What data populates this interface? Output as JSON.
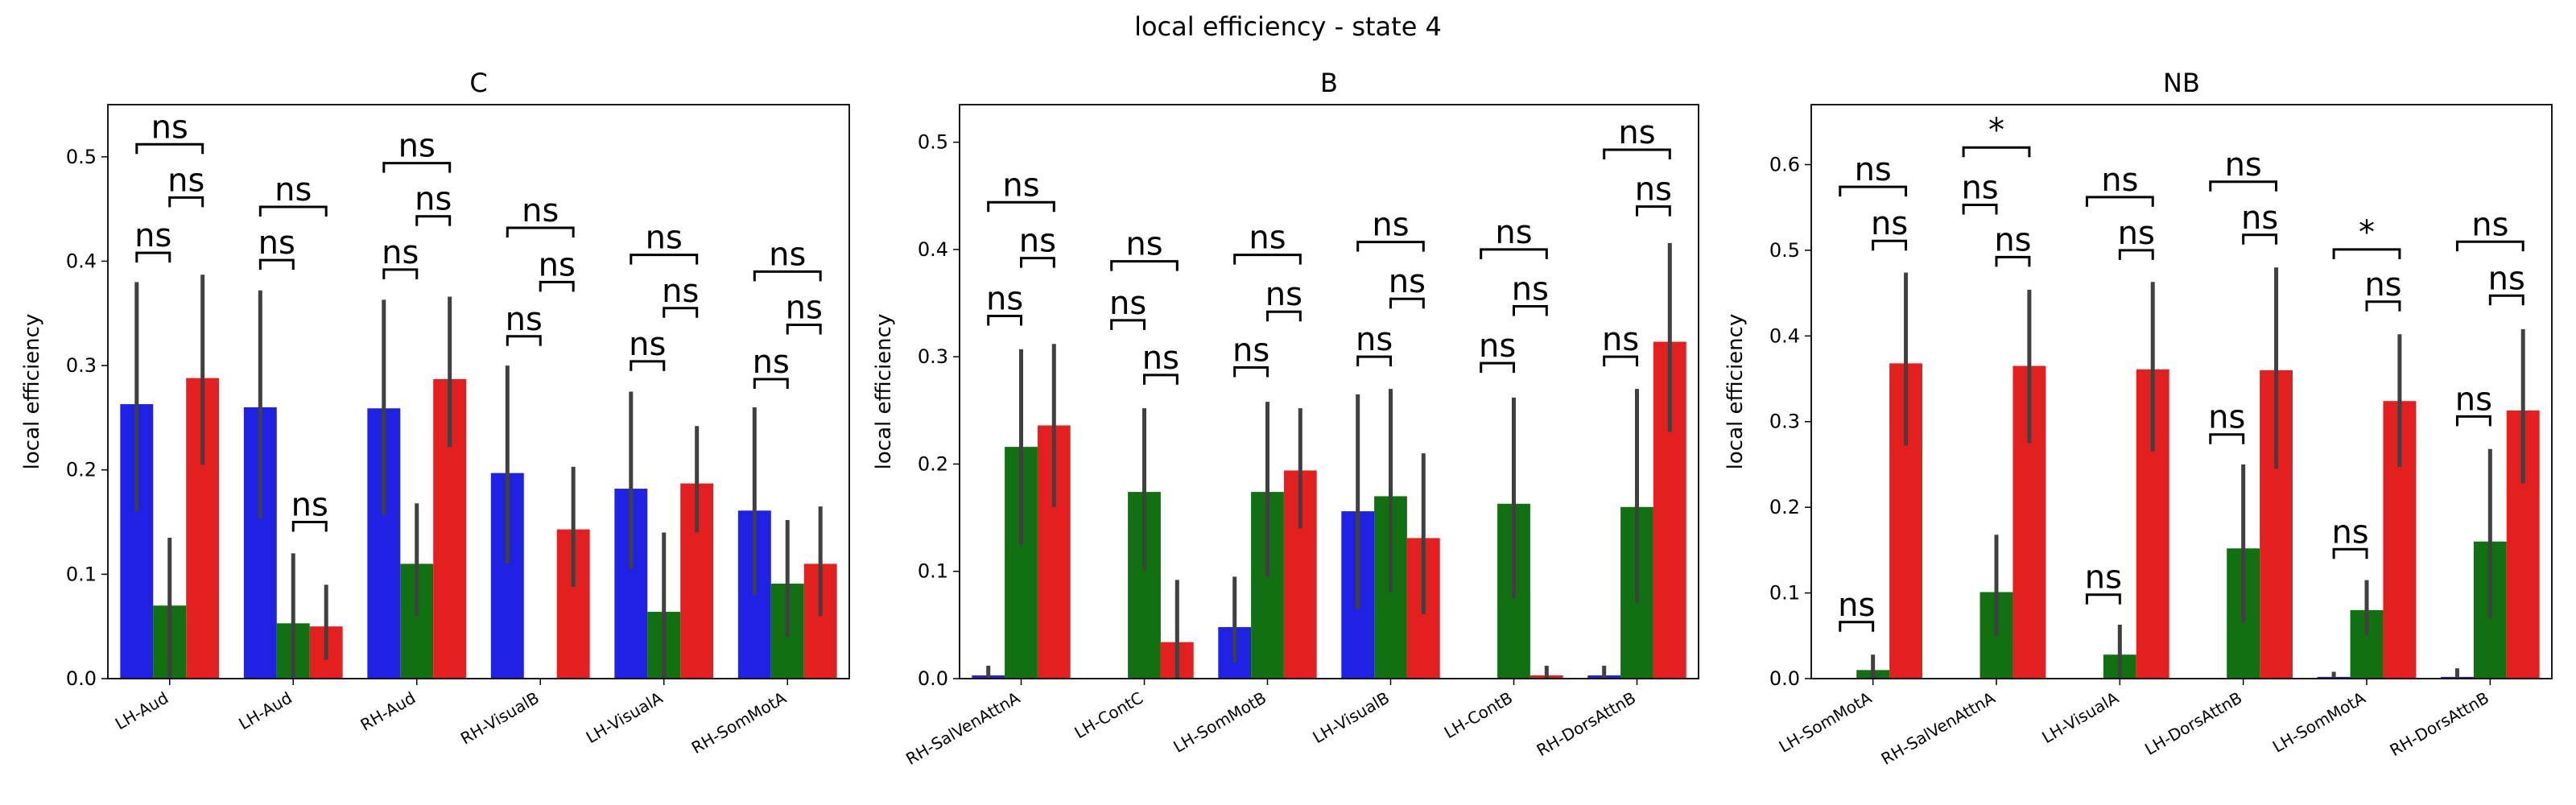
{
  "figure": {
    "title": "local efficiency - state 4"
  },
  "colors": {
    "series1": "#1f22e4",
    "series2": "#117011",
    "series3": "#e41f1f",
    "errorbar": "#404040"
  },
  "chart_data": [
    {
      "type": "bar",
      "title": "C",
      "ylabel": "local efficiency",
      "ylim": [
        0,
        0.55
      ],
      "yticks": [
        0.0,
        0.1,
        0.2,
        0.3,
        0.4,
        0.5
      ],
      "categories": [
        "LH-Aud",
        "LH-Aud",
        "RH-Aud",
        "RH-VisualB",
        "LH-VisualA",
        "RH-SomMotA"
      ],
      "series": [
        {
          "values": [
            0.263,
            0.26,
            0.259,
            0.197,
            0.182,
            0.161
          ],
          "err": [
            [
              0.16,
              0.38
            ],
            [
              0.153,
              0.372
            ],
            [
              0.157,
              0.363
            ],
            [
              0.11,
              0.3
            ],
            [
              0.105,
              0.275
            ],
            [
              0.08,
              0.26
            ]
          ]
        },
        {
          "values": [
            0.07,
            0.053,
            0.11,
            0.0,
            0.064,
            0.091
          ],
          "err": [
            [
              0.0,
              0.135
            ],
            [
              0.0,
              0.12
            ],
            [
              0.06,
              0.168
            ],
            null,
            [
              0.0,
              0.14
            ],
            [
              0.04,
              0.152
            ]
          ]
        },
        {
          "values": [
            0.288,
            0.05,
            0.287,
            0.143,
            0.187,
            0.11
          ],
          "err": [
            [
              0.205,
              0.387
            ],
            [
              0.018,
              0.09
            ],
            [
              0.222,
              0.366
            ],
            [
              0.088,
              0.203
            ],
            [
              0.14,
              0.242
            ],
            [
              0.06,
              0.165
            ]
          ]
        }
      ],
      "annotations": [
        {
          "cat": 0,
          "pair": "0-1",
          "y": 0.408,
          "label": "ns"
        },
        {
          "cat": 0,
          "pair": "1-2",
          "y": 0.461,
          "label": "ns"
        },
        {
          "cat": 0,
          "pair": "0-2",
          "y": 0.512,
          "label": "ns"
        },
        {
          "cat": 1,
          "pair": "0-1",
          "y": 0.401,
          "label": "ns"
        },
        {
          "cat": 1,
          "pair": "1-2",
          "y": 0.15,
          "label": "ns"
        },
        {
          "cat": 1,
          "pair": "0-2",
          "y": 0.452,
          "label": "ns"
        },
        {
          "cat": 2,
          "pair": "0-1",
          "y": 0.392,
          "label": "ns"
        },
        {
          "cat": 2,
          "pair": "1-2",
          "y": 0.443,
          "label": "ns"
        },
        {
          "cat": 2,
          "pair": "0-2",
          "y": 0.494,
          "label": "ns"
        },
        {
          "cat": 3,
          "pair": "0-1",
          "y": 0.328,
          "label": "ns"
        },
        {
          "cat": 3,
          "pair": "1-2",
          "y": 0.38,
          "label": "ns"
        },
        {
          "cat": 3,
          "pair": "0-2",
          "y": 0.432,
          "label": "ns"
        },
        {
          "cat": 4,
          "pair": "0-1",
          "y": 0.304,
          "label": "ns"
        },
        {
          "cat": 4,
          "pair": "1-2",
          "y": 0.355,
          "label": "ns"
        },
        {
          "cat": 4,
          "pair": "0-2",
          "y": 0.406,
          "label": "ns"
        },
        {
          "cat": 5,
          "pair": "0-1",
          "y": 0.287,
          "label": "ns"
        },
        {
          "cat": 5,
          "pair": "1-2",
          "y": 0.339,
          "label": "ns"
        },
        {
          "cat": 5,
          "pair": "0-2",
          "y": 0.39,
          "label": "ns"
        }
      ]
    },
    {
      "type": "bar",
      "title": "B",
      "ylabel": "local efficiency",
      "ylim": [
        0,
        0.535
      ],
      "yticks": [
        0.0,
        0.1,
        0.2,
        0.3,
        0.4,
        0.5
      ],
      "categories": [
        "RH-SalVenAttnA",
        "LH-ContC",
        "LH-SomMotB",
        "LH-VisualB",
        "LH-ContB",
        "RH-DorsAttnB"
      ],
      "series": [
        {
          "values": [
            0.003,
            0.0,
            0.048,
            0.156,
            0.0,
            0.003
          ],
          "err": [
            [
              0.0,
              0.012
            ],
            null,
            [
              0.015,
              0.095
            ],
            [
              0.065,
              0.265
            ],
            null,
            [
              0.0,
              0.012
            ]
          ]
        },
        {
          "values": [
            0.216,
            0.174,
            0.174,
            0.17,
            0.163,
            0.16
          ],
          "err": [
            [
              0.125,
              0.307
            ],
            [
              0.1,
              0.252
            ],
            [
              0.095,
              0.258
            ],
            [
              0.08,
              0.27
            ],
            [
              0.075,
              0.262
            ],
            [
              0.07,
              0.27
            ]
          ]
        },
        {
          "values": [
            0.236,
            0.034,
            0.194,
            0.131,
            0.003,
            0.314
          ],
          "err": [
            [
              0.16,
              0.312
            ],
            [
              0.0,
              0.092
            ],
            [
              0.14,
              0.252
            ],
            [
              0.06,
              0.21
            ],
            [
              0.0,
              0.012
            ],
            [
              0.23,
              0.406
            ]
          ]
        }
      ],
      "annotations": [
        {
          "cat": 0,
          "pair": "0-1",
          "y": 0.338,
          "label": "ns"
        },
        {
          "cat": 0,
          "pair": "1-2",
          "y": 0.392,
          "label": "ns"
        },
        {
          "cat": 0,
          "pair": "0-2",
          "y": 0.444,
          "label": "ns"
        },
        {
          "cat": 1,
          "pair": "0-1",
          "y": 0.334,
          "label": "ns"
        },
        {
          "cat": 1,
          "pair": "1-2",
          "y": 0.283,
          "label": "ns"
        },
        {
          "cat": 1,
          "pair": "0-2",
          "y": 0.389,
          "label": "ns"
        },
        {
          "cat": 2,
          "pair": "0-1",
          "y": 0.29,
          "label": "ns"
        },
        {
          "cat": 2,
          "pair": "1-2",
          "y": 0.342,
          "label": "ns"
        },
        {
          "cat": 2,
          "pair": "0-2",
          "y": 0.395,
          "label": "ns"
        },
        {
          "cat": 3,
          "pair": "0-1",
          "y": 0.3,
          "label": "ns"
        },
        {
          "cat": 3,
          "pair": "1-2",
          "y": 0.354,
          "label": "ns"
        },
        {
          "cat": 3,
          "pair": "0-2",
          "y": 0.407,
          "label": "ns"
        },
        {
          "cat": 4,
          "pair": "0-1",
          "y": 0.294,
          "label": "ns"
        },
        {
          "cat": 4,
          "pair": "1-2",
          "y": 0.347,
          "label": "ns"
        },
        {
          "cat": 4,
          "pair": "0-2",
          "y": 0.4,
          "label": "ns"
        },
        {
          "cat": 5,
          "pair": "0-1",
          "y": 0.3,
          "label": "ns"
        },
        {
          "cat": 5,
          "pair": "1-2",
          "y": 0.44,
          "label": "ns"
        },
        {
          "cat": 5,
          "pair": "0-2",
          "y": 0.493,
          "label": "ns"
        }
      ]
    },
    {
      "type": "bar",
      "title": "NB",
      "ylabel": "local efficiency",
      "ylim": [
        0,
        0.67
      ],
      "yticks": [
        0.0,
        0.1,
        0.2,
        0.3,
        0.4,
        0.5,
        0.6
      ],
      "categories": [
        "LH-SomMotA",
        "RH-SalVenAttnA",
        "LH-VisualA",
        "LH-DorsAttnB",
        "LH-SomMotA",
        "RH-DorsAttnB"
      ],
      "series": [
        {
          "values": [
            0.0,
            0.0,
            0.0,
            0.0,
            0.002,
            0.002
          ],
          "err": [
            null,
            null,
            null,
            null,
            [
              0.0,
              0.008
            ],
            [
              0.0,
              0.012
            ]
          ]
        },
        {
          "values": [
            0.01,
            0.101,
            0.028,
            0.152,
            0.08,
            0.16
          ],
          "err": [
            [
              0.0,
              0.028
            ],
            [
              0.05,
              0.168
            ],
            [
              0.0,
              0.063
            ],
            [
              0.065,
              0.25
            ],
            [
              0.05,
              0.115
            ],
            [
              0.07,
              0.268
            ]
          ]
        },
        {
          "values": [
            0.368,
            0.365,
            0.361,
            0.36,
            0.324,
            0.313
          ],
          "err": [
            [
              0.272,
              0.474
            ],
            [
              0.275,
              0.454
            ],
            [
              0.265,
              0.463
            ],
            [
              0.245,
              0.48
            ],
            [
              0.247,
              0.402
            ],
            [
              0.228,
              0.408
            ]
          ]
        }
      ],
      "annotations": [
        {
          "cat": 0,
          "pair": "1-2",
          "y": 0.511,
          "label": "ns"
        },
        {
          "cat": 0,
          "pair": "0-1",
          "y": 0.066,
          "label": "ns"
        },
        {
          "cat": 0,
          "pair": "0-2",
          "y": 0.574,
          "label": "ns"
        },
        {
          "cat": 1,
          "pair": "0-1",
          "y": 0.553,
          "label": "ns"
        },
        {
          "cat": 1,
          "pair": "1-2",
          "y": 0.492,
          "label": "ns"
        },
        {
          "cat": 1,
          "pair": "0-2",
          "y": 0.62,
          "label": "*"
        },
        {
          "cat": 2,
          "pair": "0-1",
          "y": 0.098,
          "label": "ns"
        },
        {
          "cat": 2,
          "pair": "1-2",
          "y": 0.5,
          "label": "ns"
        },
        {
          "cat": 2,
          "pair": "0-2",
          "y": 0.562,
          "label": "ns"
        },
        {
          "cat": 3,
          "pair": "0-1",
          "y": 0.285,
          "label": "ns"
        },
        {
          "cat": 3,
          "pair": "1-2",
          "y": 0.518,
          "label": "ns"
        },
        {
          "cat": 3,
          "pair": "0-2",
          "y": 0.58,
          "label": "ns"
        },
        {
          "cat": 4,
          "pair": "0-1",
          "y": 0.151,
          "label": "ns"
        },
        {
          "cat": 4,
          "pair": "1-2",
          "y": 0.44,
          "label": "ns"
        },
        {
          "cat": 4,
          "pair": "0-2",
          "y": 0.501,
          "label": "*"
        },
        {
          "cat": 5,
          "pair": "0-1",
          "y": 0.306,
          "label": "ns"
        },
        {
          "cat": 5,
          "pair": "1-2",
          "y": 0.447,
          "label": "ns"
        },
        {
          "cat": 5,
          "pair": "0-2",
          "y": 0.51,
          "label": "ns"
        }
      ]
    }
  ]
}
